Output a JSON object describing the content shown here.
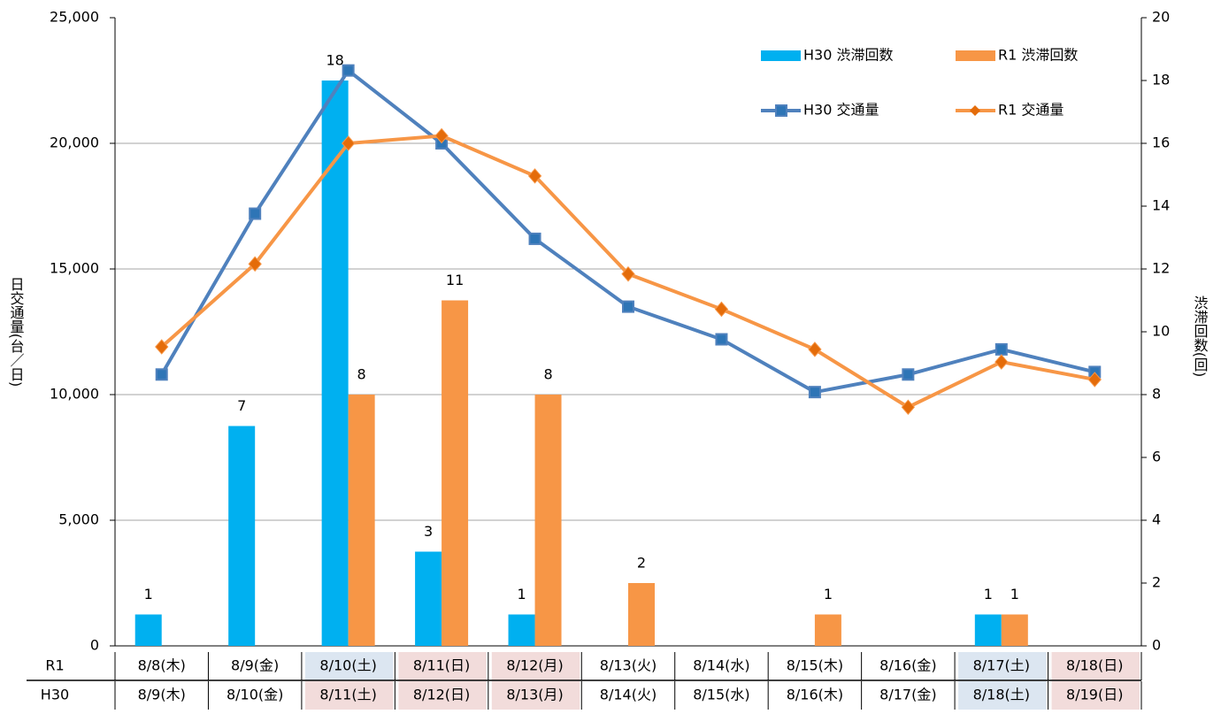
{
  "chart_data": {
    "type": "bar+line",
    "y_title": "日交通量(台／日)",
    "y2_title": "渋滞回数(回)",
    "ylim": [
      0,
      25000
    ],
    "yticks": [
      {
        "value": 0,
        "label": "0"
      },
      {
        "value": 5000,
        "label": "5,000"
      },
      {
        "value": 10000,
        "label": "10,000"
      },
      {
        "value": 15000,
        "label": "15,000"
      },
      {
        "value": 20000,
        "label": "20,000"
      },
      {
        "value": 25000,
        "label": "25,000"
      }
    ],
    "y2lim": [
      0,
      20
    ],
    "y2ticks": [
      0,
      2,
      4,
      6,
      8,
      10,
      12,
      14,
      16,
      18,
      20
    ],
    "grid": true,
    "legend": "top-right",
    "series": [
      {
        "name": "H30 渋滞回数",
        "kind": "bar",
        "axis": "y2",
        "color": "#00b0f0",
        "values": [
          1,
          7,
          18,
          3,
          1,
          null,
          null,
          null,
          null,
          1,
          null
        ]
      },
      {
        "name": "R1 渋滞回数",
        "kind": "bar",
        "axis": "y2",
        "color": "#f79646",
        "values": [
          null,
          null,
          8,
          11,
          8,
          2,
          null,
          1,
          null,
          1,
          null
        ]
      },
      {
        "name": "H30 交通量",
        "kind": "line",
        "marker": "square",
        "color": "#4f81bd",
        "values": [
          10800,
          17200,
          22900,
          20000,
          16200,
          13500,
          12200,
          10100,
          10800,
          11800,
          10900
        ]
      },
      {
        "name": "R1 交通量",
        "kind": "line",
        "marker": "diamond",
        "color": "#f79646",
        "values": [
          11900,
          15200,
          20000,
          20300,
          18700,
          14800,
          13400,
          11800,
          9500,
          11300,
          10600
        ]
      }
    ],
    "table": {
      "rows": [
        {
          "label": "R1",
          "cells": [
            "8/8(木)",
            "8/9(金)",
            "8/10(土)",
            "8/11(日)",
            "8/12(月)",
            "8/13(火)",
            "8/14(水)",
            "8/15(木)",
            "8/16(金)",
            "8/17(土)",
            "8/18(日)"
          ],
          "colors": [
            null,
            null,
            "#dce6f1",
            "#f2dcdb",
            "#f2dcdb",
            null,
            null,
            null,
            null,
            "#dce6f1",
            "#f2dcdb"
          ]
        },
        {
          "label": "H30",
          "cells": [
            "8/9(木)",
            "8/10(金)",
            "8/11(土)",
            "8/12(日)",
            "8/13(月)",
            "8/14(火)",
            "8/15(水)",
            "8/16(木)",
            "8/17(金)",
            "8/18(土)",
            "8/19(日)"
          ],
          "colors": [
            null,
            null,
            "#f2dcdb",
            "#f2dcdb",
            "#f2dcdb",
            null,
            null,
            null,
            null,
            "#dce6f1",
            "#f2dcdb"
          ]
        }
      ]
    }
  }
}
